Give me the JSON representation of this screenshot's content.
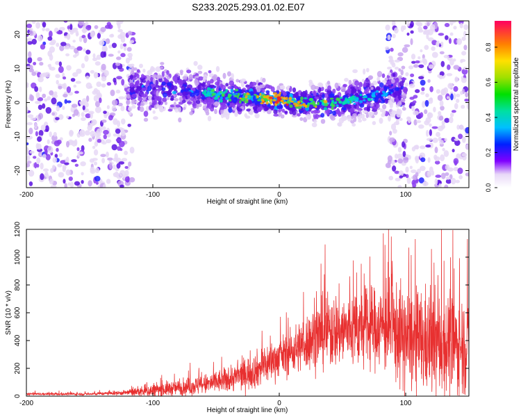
{
  "title": "S233.2025.293.01.02.E07",
  "colors": {
    "snr_line": "#e83030",
    "scatter_low": "#d8c2f0",
    "scatter_mid": "#6a14d8",
    "scatter_high": "#ff2020"
  },
  "chart_data": [
    {
      "type": "heatmap",
      "name": "spectrogram",
      "xlabel": "Height of straight line (km)",
      "ylabel": "Frequency (Hz)",
      "xlim": [
        -200,
        150
      ],
      "ylim": [
        -25,
        24
      ],
      "xticks": [
        "-200",
        "-100",
        "0",
        "100"
      ],
      "xtick_values": [
        -200,
        -100,
        0,
        100
      ],
      "yticks": [
        "-20",
        "-10",
        "0",
        "10",
        "20"
      ],
      "ytick_values": [
        -20,
        -10,
        0,
        10,
        20
      ],
      "band_center": {
        "height_km": [
          -120,
          -100,
          -80,
          -60,
          -40,
          -20,
          0,
          20,
          40,
          60,
          80,
          90,
          100
        ],
        "frequency_hz": [
          4,
          4,
          3.5,
          3,
          2,
          1.5,
          0.5,
          0,
          0,
          1,
          2,
          4,
          3
        ]
      },
      "colorbar": {
        "label": "Normalized spectral amplitude",
        "ticks": [
          "0.0",
          "0.2",
          "0.4",
          "0.6",
          "0.8"
        ],
        "tick_values": [
          0.0,
          0.2,
          0.4,
          0.6,
          0.8
        ],
        "range": [
          0,
          0.95
        ]
      }
    },
    {
      "type": "line",
      "name": "snr",
      "xlabel": "Height of straight line (km)",
      "ylabel": "SNR (10 * v/v)",
      "xlim": [
        -200,
        150
      ],
      "ylim": [
        0,
        1200
      ],
      "xticks": [
        "-200",
        "-100",
        "0",
        "100"
      ],
      "xtick_values": [
        -200,
        -100,
        0,
        100
      ],
      "yticks": [
        "0",
        "200",
        "400",
        "600",
        "800",
        "1000",
        "1200"
      ],
      "ytick_values": [
        0,
        200,
        400,
        600,
        800,
        1000,
        1200
      ],
      "envelope": {
        "height_km": [
          -200,
          -150,
          -120,
          -100,
          -80,
          -60,
          -40,
          -20,
          -10,
          0,
          10,
          20,
          30,
          40,
          60,
          80,
          90,
          100,
          120,
          140,
          150
        ],
        "mean_snr": [
          15,
          15,
          25,
          40,
          60,
          80,
          120,
          180,
          230,
          280,
          320,
          380,
          440,
          470,
          480,
          500,
          480,
          400,
          380,
          370,
          360
        ],
        "spread": [
          10,
          10,
          20,
          60,
          60,
          80,
          100,
          140,
          160,
          150,
          180,
          220,
          260,
          300,
          300,
          320,
          400,
          400,
          420,
          400,
          380
        ]
      }
    }
  ]
}
